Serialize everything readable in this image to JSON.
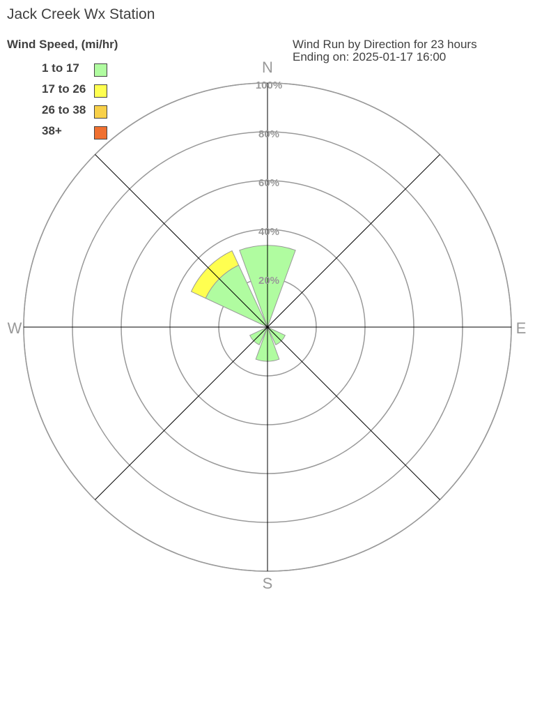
{
  "title": "Jack Creek Wx Station",
  "legend_title": "Wind Speed, (mi/hr)",
  "info": {
    "line1": "Wind Run by Direction for 23 hours",
    "line2": "Ending on: 2025-01-17 16:00"
  },
  "chart_data": {
    "type": "wind-rose",
    "directions": [
      "N",
      "NE",
      "E",
      "SE",
      "S",
      "SW",
      "W",
      "NW"
    ],
    "direction_labels": {
      "N": "N",
      "E": "E",
      "S": "S",
      "W": "W"
    },
    "radial_ticks": [
      20,
      40,
      60,
      80,
      100
    ],
    "radial_tick_labels": [
      "20%",
      "40%",
      "60%",
      "80%",
      "100%"
    ],
    "rmax": 100,
    "legend_placement": "top-left",
    "series": [
      {
        "name": "1 to 17",
        "color": "#b0fca0",
        "values": [
          33.5,
          0,
          0,
          8,
          14,
          8,
          0,
          28
        ]
      },
      {
        "name": "17 to 26",
        "color": "#ffff50",
        "values": [
          0,
          0,
          0,
          0,
          0,
          0,
          0,
          6.5
        ]
      },
      {
        "name": "26 to 38",
        "color": "#f8d048",
        "values": [
          0,
          0,
          0,
          0,
          0,
          0,
          0,
          0
        ]
      },
      {
        "name": "38+",
        "color": "#f07030",
        "values": [
          0,
          0,
          0,
          0,
          0,
          0,
          0,
          0
        ]
      }
    ]
  }
}
